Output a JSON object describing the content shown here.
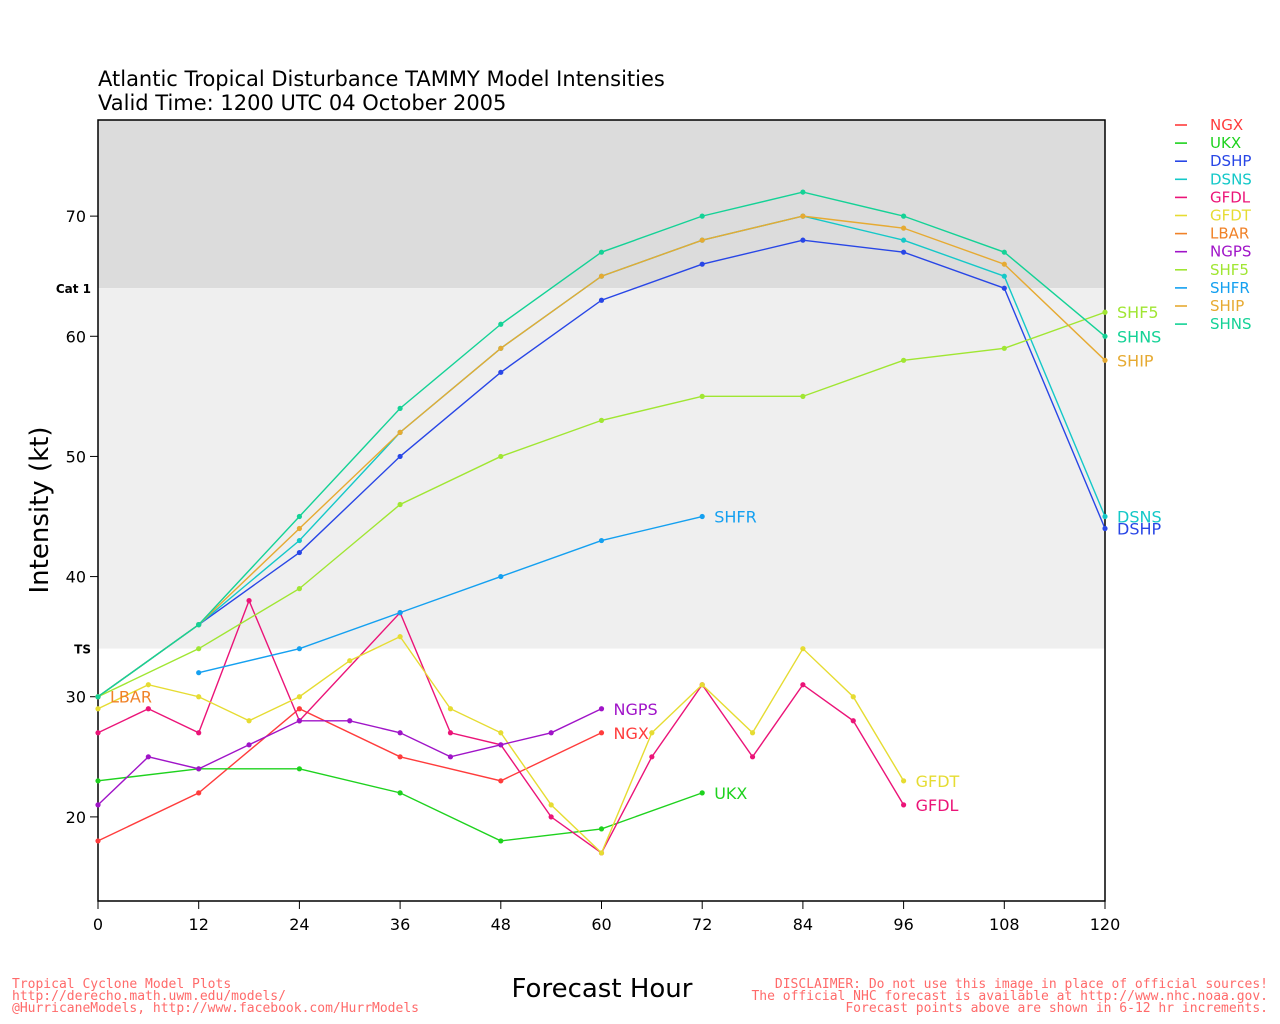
{
  "chart_data": {
    "type": "line",
    "title": "Atlantic Tropical Disturbance TAMMY Model Intensities",
    "subtitle": "Valid Time: 1200 UTC 04 October 2005",
    "xlabel": "Forecast Hour",
    "ylabel": "Intensity (kt)",
    "xlim": [
      0,
      120
    ],
    "ylim": [
      13,
      78
    ],
    "x_ticks": [
      "0",
      "12",
      "24",
      "36",
      "48",
      "60",
      "72",
      "84",
      "96",
      "108",
      "120"
    ],
    "y_ticks": [
      "20",
      "30",
      "40",
      "50",
      "60",
      "70"
    ],
    "bands": [
      {
        "label": "",
        "from": 64,
        "to": 78,
        "color": "#dcdcdc"
      },
      {
        "label": "Cat 1",
        "from": 34,
        "to": 64,
        "color": "#efefef"
      },
      {
        "label": "TS",
        "from": 13,
        "to": 34,
        "color": "#ffffff"
      }
    ],
    "grid": false,
    "legend_position": "right",
    "series": [
      {
        "name": "NGX",
        "color": "#ff3c3c",
        "label_at": "end",
        "x": [
          0,
          12,
          24,
          36,
          48,
          60
        ],
        "y": [
          18,
          22,
          29,
          25,
          23,
          27
        ]
      },
      {
        "name": "UKX",
        "color": "#1ed21e",
        "label_at": "end",
        "x": [
          0,
          12,
          24,
          36,
          48,
          60,
          72
        ],
        "y": [
          23,
          24,
          24,
          22,
          18,
          19,
          22
        ]
      },
      {
        "name": "DSHP",
        "color": "#2846e6",
        "label_at": "end",
        "x": [
          0,
          12,
          24,
          36,
          48,
          60,
          72,
          84,
          96,
          108,
          120
        ],
        "y": [
          30,
          36,
          42,
          50,
          57,
          63,
          66,
          68,
          67,
          64,
          44
        ]
      },
      {
        "name": "DSNS",
        "color": "#14c8c8",
        "label_at": "end",
        "x": [
          0,
          12,
          24,
          36,
          48,
          60,
          72,
          84,
          96,
          108,
          120
        ],
        "y": [
          30,
          36,
          43,
          52,
          59,
          65,
          68,
          70,
          68,
          65,
          45
        ]
      },
      {
        "name": "GFDL",
        "color": "#eb1478",
        "label_at": "end",
        "x": [
          0,
          6,
          12,
          18,
          24,
          36,
          42,
          48,
          54,
          60,
          66,
          72,
          78,
          84,
          90,
          96
        ],
        "y": [
          27,
          29,
          27,
          38,
          28,
          37,
          27,
          26,
          20,
          17,
          25,
          31,
          25,
          31,
          28,
          21
        ]
      },
      {
        "name": "GFDT",
        "color": "#e6dc32",
        "label_at": "end",
        "x": [
          0,
          6,
          12,
          18,
          24,
          30,
          36,
          42,
          48,
          54,
          60,
          66,
          72,
          78,
          84,
          90,
          96
        ],
        "y": [
          29,
          31,
          30,
          28,
          30,
          33,
          35,
          29,
          27,
          21,
          17,
          27,
          31,
          27,
          34,
          30,
          23
        ]
      },
      {
        "name": "LBAR",
        "color": "#f08228",
        "label_at": "start",
        "x": [
          0
        ],
        "y": [
          30
        ]
      },
      {
        "name": "NGPS",
        "color": "#a014c8",
        "label_at": "end",
        "x": [
          0,
          6,
          12,
          18,
          24,
          30,
          36,
          42,
          48,
          54,
          60
        ],
        "y": [
          21,
          25,
          24,
          26,
          28,
          28,
          27,
          25,
          26,
          27,
          29
        ]
      },
      {
        "name": "SHF5",
        "color": "#a0e632",
        "label_at": "end",
        "x": [
          0,
          12,
          24,
          36,
          48,
          60,
          72,
          84,
          96,
          108,
          120
        ],
        "y": [
          30,
          34,
          39,
          46,
          50,
          53,
          55,
          55,
          58,
          59,
          62
        ]
      },
      {
        "name": "SHFR",
        "color": "#14a0f0",
        "label_at": "end",
        "x": [
          12,
          24,
          36,
          48,
          60,
          72
        ],
        "y": [
          32,
          34,
          37,
          40,
          43,
          45
        ]
      },
      {
        "name": "SHIP",
        "color": "#e6aa32",
        "label_at": "end",
        "x": [
          0,
          12,
          24,
          36,
          48,
          60,
          72,
          84,
          96,
          108,
          120
        ],
        "y": [
          30,
          36,
          44,
          52,
          59,
          65,
          68,
          70,
          69,
          66,
          58
        ]
      },
      {
        "name": "SHNS",
        "color": "#14d296",
        "label_at": "end",
        "x": [
          0,
          12,
          24,
          36,
          48,
          60,
          72,
          84,
          96,
          108,
          120
        ],
        "y": [
          30,
          36,
          45,
          54,
          61,
          67,
          70,
          72,
          70,
          67,
          60
        ]
      }
    ]
  },
  "footer": {
    "left_lines": [
      "Tropical Cyclone Model Plots",
      "http://derecho.math.uwm.edu/models/",
      "@HurricaneModels, http://www.facebook.com/HurrModels"
    ],
    "right_lines": [
      "DISCLAIMER: Do not use this image in place of official sources!",
      "The official NHC forecast is available at http://www.nhc.noaa.gov.",
      "Forecast points above are shown in 6-12 hr increments."
    ]
  }
}
